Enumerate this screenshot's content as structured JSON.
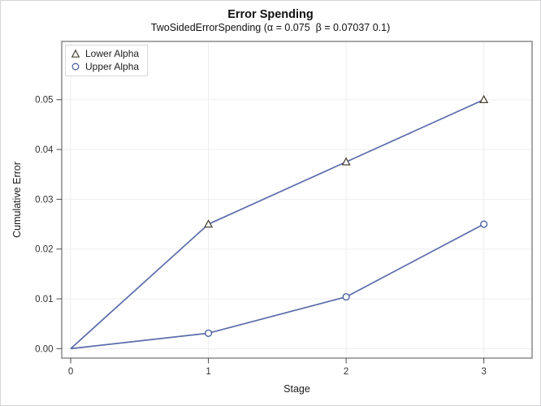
{
  "chart_data": {
    "type": "line",
    "title": "Error Spending",
    "subtitle": "TwoSidedErrorSpending (α = 0.075  β = 0.07037 0.1)",
    "xlabel": "Stage",
    "ylabel": "Cumulative Error",
    "x": [
      0,
      1,
      2,
      3
    ],
    "series": [
      {
        "name": "Lower Alpha",
        "marker": "triangle",
        "values": [
          0,
          0.025,
          0.0375,
          0.05
        ]
      },
      {
        "name": "Upper Alpha",
        "marker": "circle",
        "values": [
          0,
          0.0031,
          0.0104,
          0.025
        ]
      }
    ],
    "x_ticks": [
      "0",
      "1",
      "2",
      "3"
    ],
    "y_ticks": [
      "0.00",
      "0.01",
      "0.02",
      "0.03",
      "0.04",
      "0.05"
    ],
    "xlim": [
      -0.065,
      3.35
    ],
    "ylim": [
      -0.0019,
      0.0617
    ],
    "grid": true,
    "legend_position": "inside-top-left",
    "colors": {
      "line": "#5b6cab",
      "triangle_marker": "#4a4536",
      "circle_marker": "#4f63a5",
      "grid": "#ededef",
      "frame": "#8a8a8a",
      "tick": "#4a4a4a"
    }
  }
}
